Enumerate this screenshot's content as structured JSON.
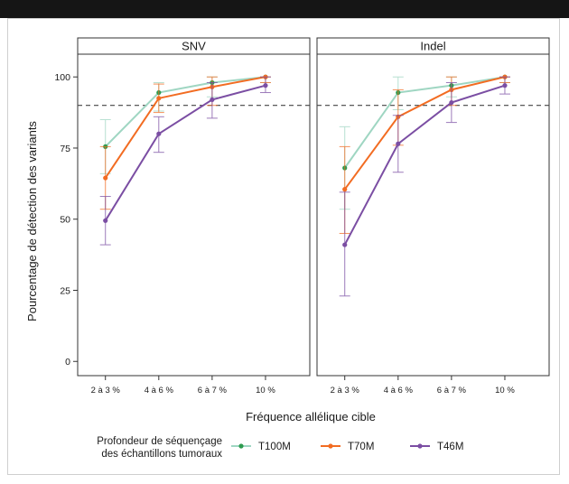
{
  "chart_data": {
    "type": "line",
    "panels": [
      {
        "title": "SNV",
        "series": [
          {
            "name": "T100M",
            "values": [
              75.5,
              94.5,
              98.0,
              100.0
            ],
            "err_low": [
              66.0,
              88.0,
              93.0,
              98.0
            ],
            "err_high": [
              85.0,
              98.0,
              100.0,
              100.0
            ]
          },
          {
            "name": "T70M",
            "values": [
              64.5,
              92.5,
              96.5,
              100.0
            ],
            "err_low": [
              53.5,
              87.5,
              90.0,
              98.0
            ],
            "err_high": [
              75.5,
              97.5,
              100.0,
              100.0
            ]
          },
          {
            "name": "T46M",
            "values": [
              49.5,
              80.0,
              92.0,
              97.0
            ],
            "err_low": [
              41.0,
              73.5,
              85.5,
              94.5
            ],
            "err_high": [
              58.0,
              86.0,
              98.0,
              100.0
            ]
          }
        ]
      },
      {
        "title": "Indel",
        "series": [
          {
            "name": "T100M",
            "values": [
              68.0,
              94.5,
              97.0,
              100.0
            ],
            "err_low": [
              53.5,
              88.5,
              93.0,
              98.0
            ],
            "err_high": [
              82.5,
              100.0,
              100.0,
              100.0
            ]
          },
          {
            "name": "T70M",
            "values": [
              60.5,
              86.0,
              95.5,
              100.0
            ],
            "err_low": [
              45.0,
              76.0,
              90.0,
              98.0
            ],
            "err_high": [
              75.5,
              95.5,
              100.0,
              100.0
            ]
          },
          {
            "name": "T46M",
            "values": [
              41.0,
              76.5,
              91.0,
              97.0
            ],
            "err_low": [
              23.0,
              66.5,
              84.0,
              94.0
            ],
            "err_high": [
              59.5,
              86.5,
              98.0,
              100.0
            ]
          }
        ]
      }
    ],
    "categories": [
      "2 à 3 %",
      "4 à 6 %",
      "6 à 7 %",
      "10 %"
    ],
    "xlabel": "Fréquence allélique cible",
    "ylabel": "Pourcentage de détection des variants",
    "ylim": [
      -5,
      108
    ],
    "yticks": [
      0,
      25,
      50,
      75,
      100
    ],
    "reference_line": 90,
    "legend": {
      "title_line1": "Profondeur de séquençage",
      "title_line2": "des échantillons tumoraux",
      "placement": "bottom"
    },
    "colors": {
      "T100M": "#2e9b4f",
      "T70M": "#f26c22",
      "T46M": "#7b4ea3",
      "T100M_line": "#9fd6c2",
      "T70M_line": "#f26c22",
      "T46M_line": "#7b4ea3"
    },
    "grid": false
  }
}
